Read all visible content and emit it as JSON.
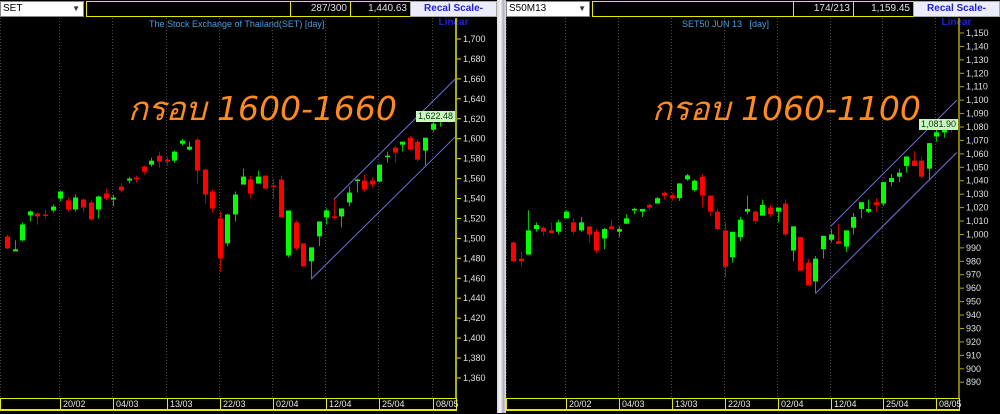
{
  "panels": [
    {
      "symbol": "SET",
      "counter": "287/300",
      "value": "1,440.63",
      "recal_label": "Recal Scale-Linear",
      "title": "The Stock Exchange of Thailand(SET) [day]",
      "annotation": "กรอบ 1600-1660",
      "last_price": "1,622.48",
      "dropdown_icon": "chevron-down-icon"
    },
    {
      "symbol": "S50M13",
      "counter": "174/213",
      "value": "1,159.45",
      "recal_label": "Recal Scale-Linear",
      "title": "SET50 JUN 13   [day]",
      "annotation": "กรอบ 1060-1100",
      "last_price": "1,081.90",
      "dropdown_icon": "chevron-down-icon"
    }
  ],
  "colors": {
    "up": "#00ff00",
    "down": "#ff0000",
    "channel": "#7070e0",
    "axis": "#e8e800",
    "annotation": "#ff8a1e",
    "title": "#4a9ee0"
  },
  "chart_data": [
    {
      "type": "candlestick",
      "title": "The Stock Exchange of Thailand(SET) [day]",
      "ylim": [
        1350,
        1710
      ],
      "y_ticks": [
        "1,360",
        "1,380",
        "1,400",
        "1,420",
        "1,440",
        "1,460",
        "1,480",
        "1,500",
        "1,520",
        "1,540",
        "1,560",
        "1,580",
        "1,600",
        "1,620",
        "1,640",
        "1,660",
        "1,680",
        "1,700"
      ],
      "x_labels": [
        {
          "index": 7,
          "label": "20/02"
        },
        {
          "index": 14,
          "label": "04/03"
        },
        {
          "index": 21,
          "label": "13/03"
        },
        {
          "index": 28,
          "label": "22/03"
        },
        {
          "index": 35,
          "label": "02/04"
        },
        {
          "index": 42,
          "label": "12/04"
        },
        {
          "index": 49,
          "label": "25/04"
        },
        {
          "index": 56,
          "label": "08/05"
        }
      ],
      "ohlc": [
        [
          1502,
          1504,
          1489,
          1490
        ],
        [
          1487,
          1498,
          1487,
          1489
        ],
        [
          1498,
          1516,
          1497,
          1514
        ],
        [
          1523,
          1528,
          1517,
          1527
        ],
        [
          1525,
          1526,
          1514,
          1522
        ],
        [
          1524,
          1529,
          1520,
          1523
        ],
        [
          1528,
          1534,
          1526,
          1532
        ],
        [
          1540,
          1548,
          1537,
          1547
        ],
        [
          1538,
          1541,
          1527,
          1529
        ],
        [
          1529,
          1544,
          1527,
          1541
        ],
        [
          1539,
          1540,
          1526,
          1531
        ],
        [
          1536,
          1538,
          1518,
          1519
        ],
        [
          1529,
          1543,
          1520,
          1542
        ],
        [
          1545,
          1550,
          1538,
          1540
        ],
        [
          1539,
          1544,
          1532,
          1541
        ],
        [
          1552,
          1556,
          1546,
          1548
        ],
        [
          1558,
          1562,
          1555,
          1560
        ],
        [
          1561,
          1563,
          1556,
          1560
        ],
        [
          1572,
          1573,
          1564,
          1567
        ],
        [
          1574,
          1581,
          1572,
          1578
        ],
        [
          1583,
          1587,
          1571,
          1577
        ],
        [
          1579,
          1582,
          1573,
          1577
        ],
        [
          1578,
          1588,
          1576,
          1587
        ],
        [
          1595,
          1600,
          1593,
          1598
        ],
        [
          1589,
          1597,
          1588,
          1592
        ],
        [
          1599,
          1601,
          1555,
          1568
        ],
        [
          1569,
          1570,
          1535,
          1544
        ],
        [
          1547,
          1549,
          1526,
          1530
        ],
        [
          1520,
          1527,
          1466,
          1480
        ],
        [
          1495,
          1525,
          1492,
          1524
        ],
        [
          1524,
          1547,
          1517,
          1544
        ],
        [
          1554,
          1570,
          1554,
          1562
        ],
        [
          1559,
          1563,
          1540,
          1545
        ],
        [
          1555,
          1568,
          1555,
          1562
        ],
        [
          1563,
          1563,
          1549,
          1550
        ],
        [
          1553,
          1560,
          1540,
          1552
        ],
        [
          1559,
          1563,
          1521,
          1521
        ],
        [
          1483,
          1528,
          1481,
          1528
        ],
        [
          1516,
          1518,
          1488,
          1490
        ],
        [
          1495,
          1495,
          1472,
          1472
        ],
        [
          1477,
          1491,
          1459,
          1491
        ],
        [
          1502,
          1517,
          1492,
          1517
        ],
        [
          1521,
          1530,
          1514,
          1528
        ],
        [
          1522,
          1539,
          1519,
          1521
        ],
        [
          1522,
          1530,
          1511,
          1530
        ],
        [
          1536,
          1552,
          1532,
          1546
        ],
        [
          1558,
          1560,
          1546,
          1559
        ],
        [
          1558,
          1564,
          1547,
          1549
        ],
        [
          1558,
          1561,
          1551,
          1554
        ],
        [
          1557,
          1574,
          1556,
          1574
        ],
        [
          1582,
          1587,
          1576,
          1583
        ],
        [
          1591,
          1593,
          1576,
          1586
        ],
        [
          1594,
          1597,
          1587,
          1597
        ],
        [
          1601,
          1603,
          1588,
          1589
        ],
        [
          1597,
          1599,
          1577,
          1579
        ],
        [
          1588,
          1601,
          1573,
          1601
        ],
        [
          1609,
          1623,
          1607,
          1615
        ],
        [
          1620,
          1626,
          1612,
          1621
        ],
        [
          1623,
          1627,
          1616,
          1621
        ]
      ],
      "channel": {
        "upper": {
          "from_index": 43,
          "from_price": 1539,
          "to_index": 59,
          "to_price": 1660
        },
        "lower": {
          "from_index": 40,
          "from_price": 1459,
          "to_index": 59,
          "to_price": 1602
        }
      },
      "last_price": 1622.48
    },
    {
      "type": "candlestick",
      "title": "SET50 JUN 13   [day]",
      "ylim": [
        885,
        1160
      ],
      "y_ticks": [
        "890",
        "900",
        "910",
        "920",
        "930",
        "940",
        "950",
        "960",
        "970",
        "980",
        "990",
        "1,000",
        "1,010",
        "1,020",
        "1,030",
        "1,040",
        "1,050",
        "1,060",
        "1,070",
        "1,080",
        "1,090",
        "1,100",
        "1,110",
        "1,120",
        "1,130",
        "1,140",
        "1,150"
      ],
      "x_labels": [
        {
          "index": 7,
          "label": "20/02"
        },
        {
          "index": 14,
          "label": "04/03"
        },
        {
          "index": 21,
          "label": "13/03"
        },
        {
          "index": 28,
          "label": "22/03"
        },
        {
          "index": 35,
          "label": "02/04"
        },
        {
          "index": 42,
          "label": "12/04"
        },
        {
          "index": 49,
          "label": "25/04"
        },
        {
          "index": 56,
          "label": "08/05"
        }
      ],
      "ohlc": [
        [
          994,
          995,
          979,
          980
        ],
        [
          982,
          987,
          976,
          980
        ],
        [
          985,
          1018,
          985,
          1003
        ],
        [
          1004,
          1009,
          1002,
          1007
        ],
        [
          1005,
          1006,
          999,
          1002
        ],
        [
          1003,
          1009,
          1001,
          1001
        ],
        [
          1002,
          1011,
          1000,
          1009
        ],
        [
          1012,
          1018,
          1012,
          1017
        ],
        [
          1009,
          1012,
          1000,
          1002
        ],
        [
          1003,
          1013,
          1002,
          1009
        ],
        [
          1006,
          1006,
          994,
          1000
        ],
        [
          1002,
          1004,
          986,
          988
        ],
        [
          997,
          1005,
          989,
          1004
        ],
        [
          1006,
          1011,
          1004,
          1004
        ],
        [
          1002,
          1006,
          998,
          1004
        ],
        [
          1008,
          1015,
          1008,
          1012
        ],
        [
          1018,
          1020,
          1015,
          1019
        ],
        [
          1017,
          1019,
          1013,
          1019
        ],
        [
          1022,
          1023,
          1018,
          1020
        ],
        [
          1023,
          1028,
          1023,
          1027
        ],
        [
          1031,
          1032,
          1026,
          1029
        ],
        [
          1029,
          1031,
          1025,
          1027
        ],
        [
          1027,
          1038,
          1025,
          1038
        ],
        [
          1041,
          1045,
          1040,
          1044
        ],
        [
          1033,
          1041,
          1032,
          1040
        ],
        [
          1043,
          1045,
          1020,
          1029
        ],
        [
          1029,
          1029,
          1014,
          1017
        ],
        [
          1017,
          1019,
          1003,
          1004
        ],
        [
          1003,
          1009,
          968,
          976
        ],
        [
          983,
          1002,
          979,
          1002
        ],
        [
          998,
          1013,
          995,
          1011
        ],
        [
          1017,
          1029,
          1015,
          1019
        ],
        [
          1017,
          1018,
          1008,
          1010
        ],
        [
          1014,
          1026,
          1014,
          1022
        ],
        [
          1020,
          1022,
          1013,
          1015
        ],
        [
          1017,
          1020,
          1009,
          1020
        ],
        [
          1023,
          1026,
          999,
          1000
        ],
        [
          988,
          1006,
          980,
          1006
        ],
        [
          998,
          998,
          973,
          973
        ],
        [
          979,
          982,
          962,
          962
        ],
        [
          965,
          984,
          956,
          982
        ],
        [
          989,
          999,
          982,
          999
        ],
        [
          996,
          1004,
          994,
          1000
        ],
        [
          995,
          1008,
          993,
          993
        ],
        [
          991,
          1003,
          987,
          1003
        ],
        [
          1005,
          1016,
          1000,
          1013
        ],
        [
          1019,
          1024,
          1012,
          1024
        ],
        [
          1017,
          1026,
          1016,
          1019
        ],
        [
          1024,
          1027,
          1017,
          1022
        ],
        [
          1023,
          1039,
          1021,
          1039
        ],
        [
          1039,
          1045,
          1036,
          1042
        ],
        [
          1043,
          1049,
          1039,
          1046
        ],
        [
          1051,
          1058,
          1046,
          1058
        ],
        [
          1055,
          1062,
          1051,
          1051
        ],
        [
          1055,
          1058,
          1042,
          1043
        ],
        [
          1049,
          1068,
          1040,
          1068
        ],
        [
          1073,
          1082,
          1069,
          1076
        ],
        [
          1076,
          1085,
          1072,
          1081
        ],
        [
          1083,
          1086,
          1076,
          1082
        ]
      ],
      "channel": {
        "upper": {
          "from_index": 42,
          "from_price": 1006,
          "to_index": 58.7,
          "to_price": 1100
        },
        "lower": {
          "from_index": 40,
          "from_price": 956,
          "to_index": 58.7,
          "to_price": 1061
        }
      },
      "last_price": 1081.9
    }
  ]
}
